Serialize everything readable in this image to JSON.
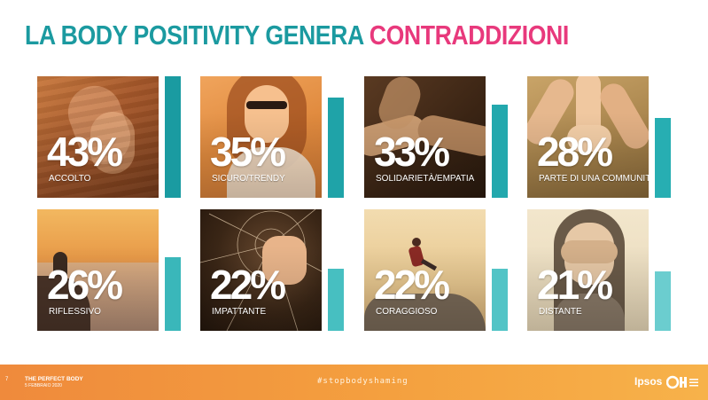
{
  "title": {
    "part1": "LA BODY POSITIVITY GENERA",
    "part2": "CONTRADDIZIONI"
  },
  "colors": {
    "teal": "#1b9aa0",
    "pink": "#e8397c",
    "footer_orange": "#f29a3e"
  },
  "cards": [
    {
      "percent": "43%",
      "label": "ACCOLTO",
      "value": 43,
      "bar_color": "#1a9ba1",
      "image": "hands-holding-photo"
    },
    {
      "percent": "35%",
      "label": "SICURO/TRENDY",
      "value": 35,
      "bar_color": "#1fa3a8",
      "image": "woman-sunglasses-photo"
    },
    {
      "percent": "33%",
      "label": "SOLIDARIETÀ/EMPATIA",
      "value": 33,
      "bar_color": "#23a8ad",
      "image": "joined-hands-photo"
    },
    {
      "percent": "28%",
      "label": "PARTE DI UNA COMMUNITY",
      "value": 28,
      "bar_color": "#27aeb2",
      "image": "hands-star-photo"
    },
    {
      "percent": "26%",
      "label": "RIFLESSIVO",
      "value": 26,
      "bar_color": "#3ab7ba",
      "image": "sunset-clouds-photo"
    },
    {
      "percent": "22%",
      "label": "IMPATTANTE",
      "value": 22,
      "bar_color": "#47bfc1",
      "image": "fist-glass-photo"
    },
    {
      "percent": "22%",
      "label": "CORAGGIOSO",
      "value": 22,
      "bar_color": "#52c4c6",
      "image": "jumping-person-photo"
    },
    {
      "percent": "21%",
      "label": "DISTANTE",
      "value": 21,
      "bar_color": "#6bcdcf",
      "image": "face-covered-photo"
    }
  ],
  "footer": {
    "page_number": "7",
    "title": "THE PERFECT BODY",
    "date": "5 FEBBRAIO 2020",
    "hashtag": "#stopbodyshaming",
    "brand": "Ipsos"
  }
}
